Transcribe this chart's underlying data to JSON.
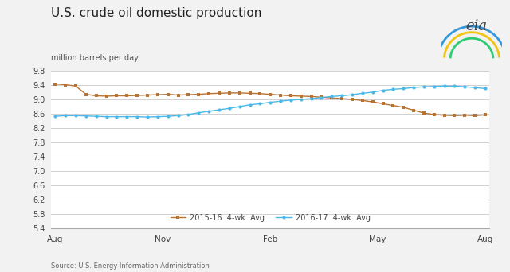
{
  "title": "U.S. crude oil domestic production",
  "subtitle": "million barrels per day",
  "source": "Source: U.S. Energy Information Administration",
  "ylim": [
    5.4,
    9.8
  ],
  "yticks": [
    5.4,
    5.8,
    6.2,
    6.6,
    7.0,
    7.4,
    7.8,
    8.2,
    8.6,
    9.0,
    9.4,
    9.8
  ],
  "xtick_labels": [
    "Aug",
    "Nov",
    "Feb",
    "May",
    "Aug"
  ],
  "xtick_positions": [
    0,
    0.25,
    0.5,
    0.75,
    1.0
  ],
  "bg_color": "#f2f2f2",
  "plot_bg_color": "#ffffff",
  "grid_color": "#d0d0d0",
  "series1_color": "#b87333",
  "series2_color": "#4ab8e8",
  "series1_label": "2015-16  4-wk. Avg",
  "series2_label": "2016-17  4-wk. Avg",
  "series1_y": [
    9.43,
    9.41,
    9.37,
    9.14,
    9.1,
    9.09,
    9.1,
    9.1,
    9.11,
    9.12,
    9.13,
    9.14,
    9.12,
    9.13,
    9.14,
    9.16,
    9.17,
    9.18,
    9.18,
    9.17,
    9.16,
    9.14,
    9.12,
    9.1,
    9.09,
    9.08,
    9.06,
    9.04,
    9.02,
    9.0,
    8.97,
    8.93,
    8.88,
    8.83,
    8.78,
    8.7,
    8.62,
    8.58,
    8.56,
    8.55,
    8.56,
    8.55,
    8.57
  ],
  "series2_y": [
    8.53,
    8.55,
    8.55,
    8.54,
    8.53,
    8.52,
    8.52,
    8.52,
    8.52,
    8.51,
    8.52,
    8.53,
    8.55,
    8.58,
    8.63,
    8.67,
    8.71,
    8.75,
    8.8,
    8.85,
    8.88,
    8.92,
    8.95,
    8.98,
    9.0,
    9.02,
    9.05,
    9.08,
    9.1,
    9.13,
    9.17,
    9.2,
    9.25,
    9.28,
    9.3,
    9.33,
    9.35,
    9.36,
    9.37,
    9.37,
    9.35,
    9.33,
    9.3
  ]
}
